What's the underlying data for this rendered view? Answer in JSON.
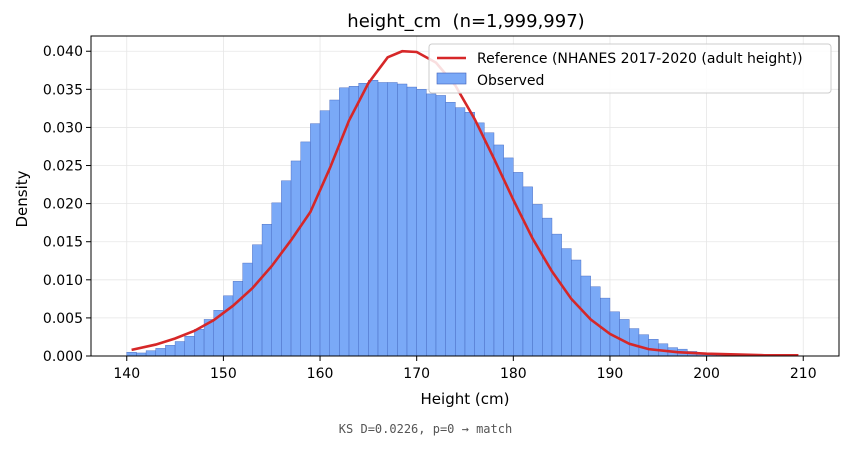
{
  "footnote": "KS D=0.0226, p=0 → match",
  "colors": {
    "bar_fill": "#7aa9f7",
    "bar_edge": "#3d5fb8",
    "reference_line": "#d62728",
    "grid": "#e6e6e6"
  },
  "chart_data": {
    "type": "bar",
    "title": "height_cm  (n=1,999,997)",
    "xlabel": "Height (cm)",
    "ylabel": "Density",
    "xlim": [
      136.3,
      213.7
    ],
    "ylim": [
      0,
      0.042
    ],
    "x_ticks": [
      140,
      150,
      160,
      170,
      180,
      190,
      200,
      210
    ],
    "x_tick_labels": [
      "140",
      "150",
      "160",
      "170",
      "180",
      "190",
      "200",
      "210"
    ],
    "y_ticks": [
      0,
      0.005,
      0.01,
      0.015,
      0.02,
      0.025,
      0.03,
      0.035,
      0.04
    ],
    "y_tick_labels": [
      "0.000",
      "0.005",
      "0.010",
      "0.015",
      "0.020",
      "0.025",
      "0.030",
      "0.035",
      "0.040"
    ],
    "grid": true,
    "legend_position": "upper right",
    "legend": [
      {
        "label": "Reference (NHANES 2017-2020 (adult height))",
        "kind": "line"
      },
      {
        "label": "Observed",
        "kind": "patch"
      }
    ],
    "histogram": {
      "name": "Observed",
      "bin_start": 140,
      "bin_width": 1.0,
      "densities": [
        0.0005,
        0.0004,
        0.0007,
        0.001,
        0.0014,
        0.0019,
        0.0026,
        0.0035,
        0.0048,
        0.006,
        0.0079,
        0.0098,
        0.0122,
        0.0146,
        0.0173,
        0.0201,
        0.023,
        0.0256,
        0.0281,
        0.0305,
        0.0322,
        0.0336,
        0.0352,
        0.0354,
        0.0358,
        0.0362,
        0.0359,
        0.0359,
        0.0357,
        0.0353,
        0.035,
        0.0344,
        0.0342,
        0.0333,
        0.0326,
        0.032,
        0.0306,
        0.0293,
        0.0277,
        0.026,
        0.0241,
        0.0222,
        0.0199,
        0.0181,
        0.016,
        0.0141,
        0.0126,
        0.0105,
        0.0091,
        0.0076,
        0.0058,
        0.0048,
        0.0036,
        0.0028,
        0.0022,
        0.0016,
        0.0011,
        0.0009,
        0.0006,
        0.0004,
        0.0003,
        0.0002,
        0.0001,
        0.0001,
        0.0001,
        0.0001,
        0.0,
        0.0,
        0.0,
        0.0
      ]
    },
    "reference": {
      "name": "Reference (NHANES 2017-2020 (adult height))",
      "type": "line",
      "x": [
        140.5,
        143,
        145,
        147,
        149,
        151,
        153,
        155,
        157,
        159,
        161,
        163,
        165,
        167,
        168.5,
        170,
        172,
        174,
        176,
        178,
        180,
        182,
        184,
        186,
        188,
        190,
        192,
        194,
        197,
        200,
        203,
        206,
        209.5
      ],
      "y": [
        0.0008,
        0.0015,
        0.0023,
        0.0033,
        0.0047,
        0.0066,
        0.0089,
        0.0118,
        0.0152,
        0.0189,
        0.0246,
        0.0309,
        0.0358,
        0.0392,
        0.04,
        0.0399,
        0.0385,
        0.0355,
        0.0311,
        0.0259,
        0.0205,
        0.0154,
        0.0111,
        0.0075,
        0.0048,
        0.0029,
        0.0016,
        0.0009,
        0.0005,
        0.0003,
        0.0002,
        0.0001,
        0.0001
      ]
    }
  }
}
